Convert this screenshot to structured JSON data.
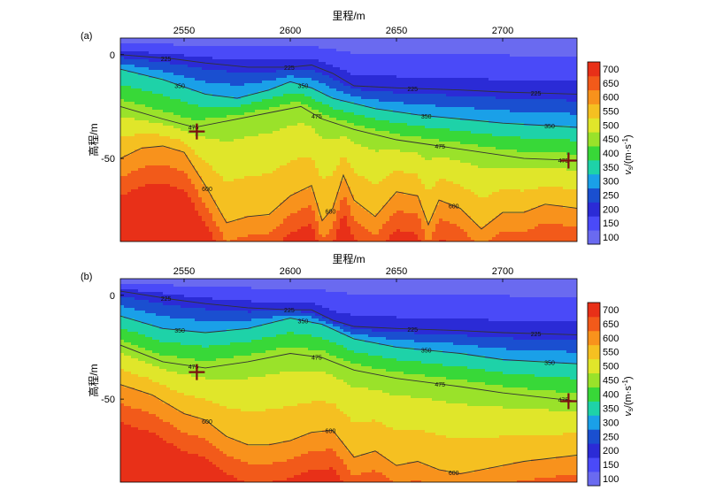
{
  "colorbar": {
    "ticks": [
      100,
      150,
      200,
      250,
      300,
      350,
      400,
      450,
      500,
      550,
      600,
      650,
      700
    ],
    "label": "v_s/(m·s⁻¹)",
    "label_main": "v",
    "label_sub": "s",
    "label_unit": "/(m·s",
    "label_exp": "-1",
    "label_close": ")",
    "colors": [
      "#6a6af0",
      "#4a4af8",
      "#2b2bd6",
      "#1a4fd0",
      "#1aa0e8",
      "#1ed2a8",
      "#38d838",
      "#9ae22a",
      "#e0e62a",
      "#f5c021",
      "#f8921c",
      "#f25a1a",
      "#e83018"
    ]
  },
  "chart_data": [
    {
      "type": "heatmap",
      "panel_label": "(a)",
      "xlabel": "里程/m",
      "ylabel": "高程/m",
      "xticks": [
        2550,
        2600,
        2650,
        2700
      ],
      "yticks": [
        0,
        -50
      ],
      "xlim": [
        2520,
        2735
      ],
      "ylim": [
        -90,
        8
      ],
      "contour_levels": [
        225,
        350,
        475,
        600
      ],
      "contours": [
        {
          "level": 225,
          "x": [
            2520,
            2545,
            2560,
            2580,
            2600,
            2610,
            2620,
            2630,
            2650,
            2680,
            2700,
            2735
          ],
          "y": [
            0,
            -2,
            -4,
            -6,
            -6,
            -5,
            -9,
            -15,
            -16,
            -17,
            -18,
            -19
          ]
        },
        {
          "level": 350,
          "x": [
            2520,
            2540,
            2560,
            2575,
            2590,
            2600,
            2610,
            2620,
            2640,
            2660,
            2680,
            2700,
            2735
          ],
          "y": [
            -7,
            -12,
            -19,
            -21,
            -17,
            -13,
            -16,
            -21,
            -26,
            -29,
            -31,
            -33,
            -35
          ]
        },
        {
          "level": 475,
          "x": [
            2520,
            2540,
            2555,
            2570,
            2590,
            2605,
            2615,
            2630,
            2650,
            2670,
            2690,
            2710,
            2735
          ],
          "y": [
            -25,
            -31,
            -35,
            -32,
            -28,
            -25,
            -31,
            -36,
            -41,
            -44,
            -47,
            -50,
            -51
          ]
        },
        {
          "level": 600,
          "x": [
            2520,
            2530,
            2540,
            2550,
            2560,
            2570,
            2580,
            2590,
            2600,
            2610,
            2615,
            2620,
            2625,
            2630,
            2640,
            2650,
            2660,
            2665,
            2670,
            2680,
            2690,
            2700,
            2710,
            2720,
            2735
          ],
          "y": [
            -50,
            -45,
            -44,
            -47,
            -63,
            -81,
            -78,
            -77,
            -68,
            -63,
            -80,
            -74,
            -58,
            -70,
            -78,
            -66,
            -68,
            -82,
            -70,
            -74,
            -84,
            -76,
            -76,
            -72,
            -74
          ]
        }
      ],
      "markers": [
        {
          "x": 2556,
          "y": -37
        },
        {
          "x": 2731,
          "y": -51
        }
      ]
    },
    {
      "type": "heatmap",
      "panel_label": "(b)",
      "xlabel": "里程/m",
      "ylabel": "高程/m",
      "xticks": [
        2550,
        2600,
        2650,
        2700
      ],
      "yticks": [
        0,
        -50
      ],
      "xlim": [
        2520,
        2735
      ],
      "ylim": [
        -90,
        8
      ],
      "contour_levels": [
        225,
        350,
        475,
        600
      ],
      "contours": [
        {
          "level": 225,
          "x": [
            2520,
            2545,
            2560,
            2580,
            2600,
            2610,
            2620,
            2630,
            2650,
            2680,
            2700,
            2735
          ],
          "y": [
            2,
            -2,
            -4,
            -6,
            -7,
            -7,
            -12,
            -15,
            -16,
            -17,
            -18,
            -19
          ]
        },
        {
          "level": 350,
          "x": [
            2520,
            2540,
            2560,
            2580,
            2600,
            2615,
            2630,
            2650,
            2680,
            2700,
            2735
          ],
          "y": [
            -10,
            -16,
            -18,
            -16,
            -11,
            -14,
            -21,
            -25,
            -28,
            -31,
            -33
          ]
        },
        {
          "level": 475,
          "x": [
            2520,
            2540,
            2560,
            2580,
            2600,
            2615,
            2630,
            2650,
            2680,
            2700,
            2735
          ],
          "y": [
            -24,
            -32,
            -35,
            -32,
            -28,
            -30,
            -36,
            -40,
            -44,
            -47,
            -51
          ]
        },
        {
          "level": 600,
          "x": [
            2520,
            2535,
            2550,
            2560,
            2570,
            2580,
            2590,
            2600,
            2610,
            2620,
            2630,
            2640,
            2650,
            2660,
            2670,
            2680,
            2690,
            2700,
            2710,
            2735
          ],
          "y": [
            -43,
            -48,
            -57,
            -60,
            -68,
            -72,
            -72,
            -70,
            -66,
            -65,
            -78,
            -75,
            -82,
            -80,
            -84,
            -86,
            -84,
            -82,
            -80,
            -77
          ]
        }
      ],
      "markers": [
        {
          "x": 2556,
          "y": -37
        },
        {
          "x": 2731,
          "y": -51
        }
      ]
    }
  ]
}
